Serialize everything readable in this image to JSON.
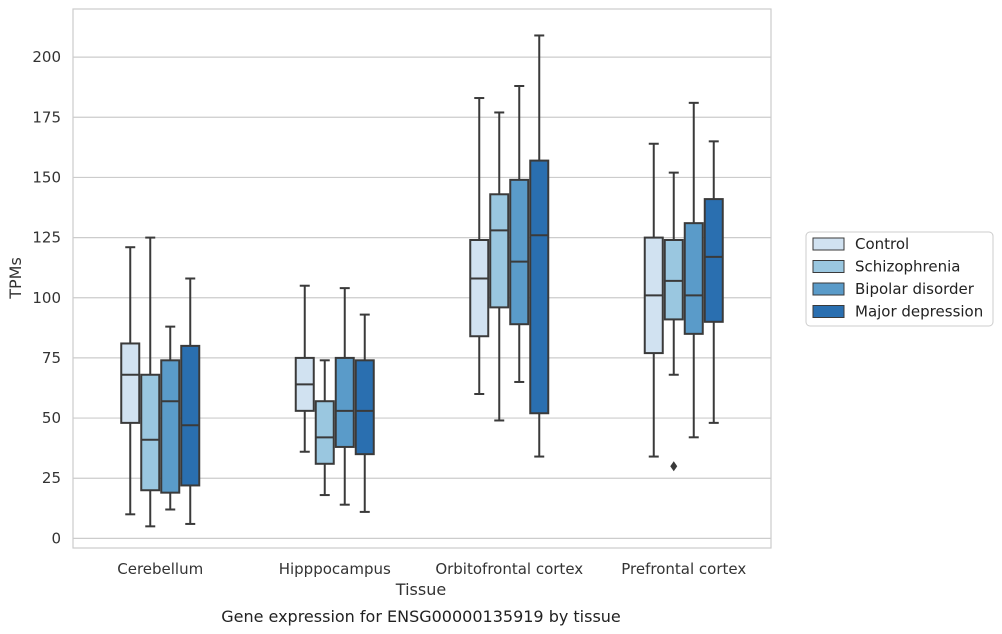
{
  "caption": "Gene expression for ENSG00000135919 by tissue",
  "chart_data": {
    "type": "boxplot",
    "xlabel": "Tissue",
    "ylabel": "TPMs",
    "ylim": [
      -4,
      220
    ],
    "yticks": [
      0,
      25,
      50,
      75,
      100,
      125,
      150,
      175,
      200
    ],
    "grid": true,
    "legend_position": "right",
    "categories": [
      "Cerebellum",
      "Hipppocampus",
      "Orbitofrontal cortex",
      "Prefrontal cortex"
    ],
    "series": [
      {
        "name": "Control",
        "color": "#d1e2f1",
        "boxes": [
          {
            "whisker_low": 10,
            "q1": 48,
            "median": 68,
            "q3": 81,
            "whisker_high": 121,
            "outliers": []
          },
          {
            "whisker_low": 36,
            "q1": 53,
            "median": 64,
            "q3": 75,
            "whisker_high": 105,
            "outliers": []
          },
          {
            "whisker_low": 60,
            "q1": 84,
            "median": 108,
            "q3": 124,
            "whisker_high": 183,
            "outliers": []
          },
          {
            "whisker_low": 34,
            "q1": 77,
            "median": 101,
            "q3": 125,
            "whisker_high": 164,
            "outliers": []
          }
        ]
      },
      {
        "name": "Schizophrenia",
        "color": "#9ac7e0",
        "boxes": [
          {
            "whisker_low": 5,
            "q1": 20,
            "median": 41,
            "q3": 68,
            "whisker_high": 125,
            "outliers": []
          },
          {
            "whisker_low": 18,
            "q1": 31,
            "median": 42,
            "q3": 57,
            "whisker_high": 74,
            "outliers": []
          },
          {
            "whisker_low": 49,
            "q1": 96,
            "median": 128,
            "q3": 143,
            "whisker_high": 177,
            "outliers": []
          },
          {
            "whisker_low": 68,
            "q1": 91,
            "median": 107,
            "q3": 124,
            "whisker_high": 152,
            "outliers": [
              30
            ]
          }
        ]
      },
      {
        "name": "Bipolar disorder",
        "color": "#5a9bc9",
        "boxes": [
          {
            "whisker_low": 12,
            "q1": 19,
            "median": 57,
            "q3": 74,
            "whisker_high": 88,
            "outliers": []
          },
          {
            "whisker_low": 14,
            "q1": 38,
            "median": 53,
            "q3": 75,
            "whisker_high": 104,
            "outliers": []
          },
          {
            "whisker_low": 65,
            "q1": 89,
            "median": 115,
            "q3": 149,
            "whisker_high": 188,
            "outliers": []
          },
          {
            "whisker_low": 42,
            "q1": 85,
            "median": 101,
            "q3": 131,
            "whisker_high": 181,
            "outliers": []
          }
        ]
      },
      {
        "name": "Major depression",
        "color": "#2a6fb0",
        "boxes": [
          {
            "whisker_low": 6,
            "q1": 22,
            "median": 47,
            "q3": 80,
            "whisker_high": 108,
            "outliers": []
          },
          {
            "whisker_low": 11,
            "q1": 35,
            "median": 53,
            "q3": 74,
            "whisker_high": 93,
            "outliers": []
          },
          {
            "whisker_low": 34,
            "q1": 52,
            "median": 126,
            "q3": 157,
            "whisker_high": 209,
            "outliers": []
          },
          {
            "whisker_low": 48,
            "q1": 90,
            "median": 117,
            "q3": 141,
            "whisker_high": 165,
            "outliers": []
          }
        ]
      }
    ]
  }
}
